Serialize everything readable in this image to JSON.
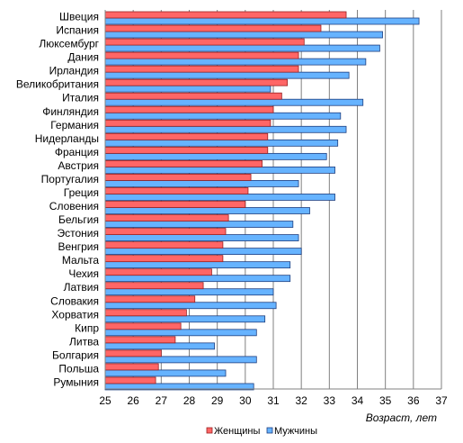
{
  "chart_data": {
    "type": "bar",
    "orientation": "horizontal",
    "categories": [
      "Швеция",
      "Испания",
      "Люксембург",
      "Дания",
      "Ирландия",
      "Великобритания",
      "Италия",
      "Финляндия",
      "Германия",
      "Нидерланды",
      "Франция",
      "Австрия",
      "Португалия",
      "Греция",
      "Словения",
      "Бельгия",
      "Эстония",
      "Венгрия",
      "Мальта",
      "Чехия",
      "Латвия",
      "Словакия",
      "Хорватия",
      "Кипр",
      "Литва",
      "Болгария",
      "Польша",
      "Румыния"
    ],
    "series": [
      {
        "name": "Женщины",
        "color": "#ff6666",
        "values": [
          33.6,
          32.7,
          32.1,
          31.9,
          31.9,
          31.5,
          31.3,
          31.0,
          30.9,
          30.8,
          30.8,
          30.6,
          30.2,
          30.1,
          30.0,
          29.4,
          29.3,
          29.2,
          29.2,
          28.8,
          28.5,
          28.2,
          27.9,
          27.7,
          27.5,
          27.0,
          26.9,
          26.8
        ]
      },
      {
        "name": "Мужчины",
        "color": "#66b3ff",
        "values": [
          36.2,
          34.9,
          34.8,
          34.3,
          33.7,
          30.9,
          34.2,
          33.4,
          33.6,
          33.3,
          32.9,
          33.2,
          31.9,
          33.2,
          32.3,
          31.7,
          31.9,
          32.0,
          31.6,
          31.6,
          31.0,
          31.1,
          30.7,
          30.4,
          28.9,
          30.4,
          29.3,
          30.3
        ]
      }
    ],
    "xlim": [
      25,
      37
    ],
    "xticks": [
      "25",
      "26",
      "27",
      "28",
      "29",
      "30",
      "31",
      "32",
      "33",
      "34",
      "35",
      "36",
      "37"
    ],
    "xlabel": "Возраст, лет",
    "grid": "vertical",
    "legend": "bottom"
  }
}
